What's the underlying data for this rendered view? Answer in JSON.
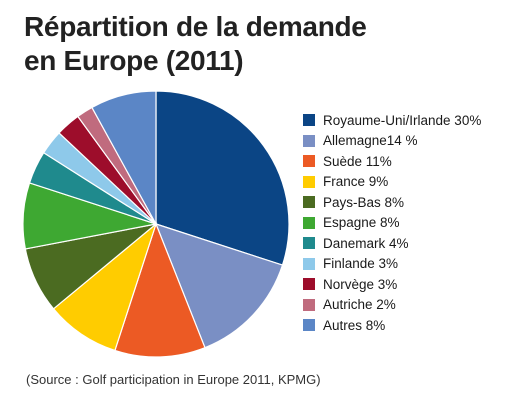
{
  "title_lines": [
    "Répartition de la demande",
    "en Europe (2011)"
  ],
  "source": "(Source : Golf participation in Europe 2011, KPMG)",
  "chart_data": {
    "type": "pie",
    "title": "Répartition de la demande en Europe (2011)",
    "legend_position": "right",
    "slices": [
      {
        "label": "Royaume-Uni/Irlande 30%",
        "value": 30,
        "color": "#0b4585"
      },
      {
        "label": "Allemagne14 %",
        "value": 14,
        "color": "#7a8fc4"
      },
      {
        "label": "Suède 11%",
        "value": 11,
        "color": "#ec5a24"
      },
      {
        "label": "France 9%",
        "value": 9,
        "color": "#ffcc00"
      },
      {
        "label": "Pays-Bas 8%",
        "value": 8,
        "color": "#4b6b21"
      },
      {
        "label": "Espagne 8%",
        "value": 8,
        "color": "#3ea832"
      },
      {
        "label": "Danemark 4%",
        "value": 4,
        "color": "#1f8a8d"
      },
      {
        "label": "Finlande 3%",
        "value": 3,
        "color": "#8ec9ea"
      },
      {
        "label": "Norvège 3%",
        "value": 3,
        "color": "#9d0d2b"
      },
      {
        "label": "Autriche 2%",
        "value": 2,
        "color": "#c06b7e"
      },
      {
        "label": "Autres 8%",
        "value": 8,
        "color": "#5b86c6"
      }
    ]
  }
}
